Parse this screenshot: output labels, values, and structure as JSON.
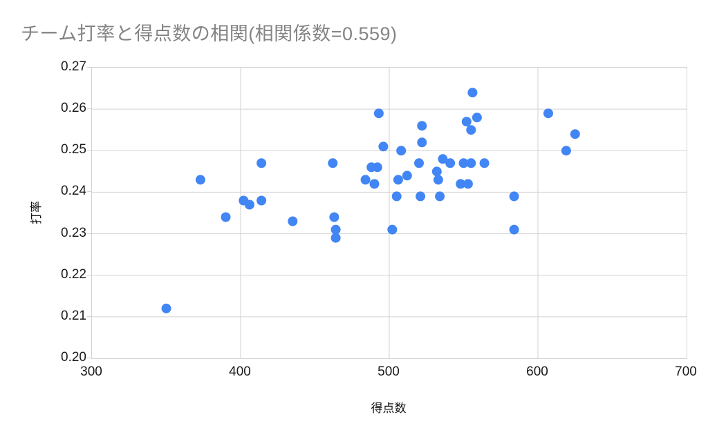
{
  "title": "チーム打率と得点数の相関(相関係数=0.559)",
  "colors": {
    "point": "#4285f4",
    "gridline": "#d2d2d2",
    "title_text": "#848484",
    "tick_text": "#1a1a1a"
  },
  "chart_data": {
    "type": "scatter",
    "title": "チーム打率と得点数の相関(相関係数=0.559)",
    "xlabel": "得点数",
    "ylabel": "打率",
    "correlation_coefficient": 0.559,
    "xlim": [
      300,
      700
    ],
    "ylim": [
      0.2,
      0.27
    ],
    "x_ticks": [
      300,
      400,
      500,
      600,
      700
    ],
    "y_ticks": [
      0.2,
      0.21,
      0.22,
      0.23,
      0.24,
      0.25,
      0.26,
      0.27
    ],
    "grid": true,
    "legend": false,
    "point_radius_px": 7,
    "points": [
      [
        350,
        0.212
      ],
      [
        373,
        0.243
      ],
      [
        390,
        0.234
      ],
      [
        402,
        0.238
      ],
      [
        406,
        0.237
      ],
      [
        414,
        0.238
      ],
      [
        414,
        0.247
      ],
      [
        435,
        0.233
      ],
      [
        462,
        0.247
      ],
      [
        463,
        0.234
      ],
      [
        464,
        0.231
      ],
      [
        464,
        0.229
      ],
      [
        484,
        0.243
      ],
      [
        488,
        0.246
      ],
      [
        490,
        0.242
      ],
      [
        492,
        0.246
      ],
      [
        493,
        0.259
      ],
      [
        496,
        0.251
      ],
      [
        502,
        0.231
      ],
      [
        505,
        0.239
      ],
      [
        506,
        0.243
      ],
      [
        508,
        0.25
      ],
      [
        512,
        0.244
      ],
      [
        520,
        0.247
      ],
      [
        521,
        0.239
      ],
      [
        522,
        0.256
      ],
      [
        522,
        0.252
      ],
      [
        532,
        0.245
      ],
      [
        533,
        0.243
      ],
      [
        534,
        0.239
      ],
      [
        536,
        0.248
      ],
      [
        541,
        0.247
      ],
      [
        548,
        0.242
      ],
      [
        550,
        0.247
      ],
      [
        552,
        0.257
      ],
      [
        553,
        0.242
      ],
      [
        555,
        0.247
      ],
      [
        555,
        0.255
      ],
      [
        556,
        0.264
      ],
      [
        559,
        0.258
      ],
      [
        564,
        0.247
      ],
      [
        584,
        0.239
      ],
      [
        584,
        0.231
      ],
      [
        607,
        0.259
      ],
      [
        619,
        0.25
      ],
      [
        625,
        0.254
      ]
    ]
  }
}
